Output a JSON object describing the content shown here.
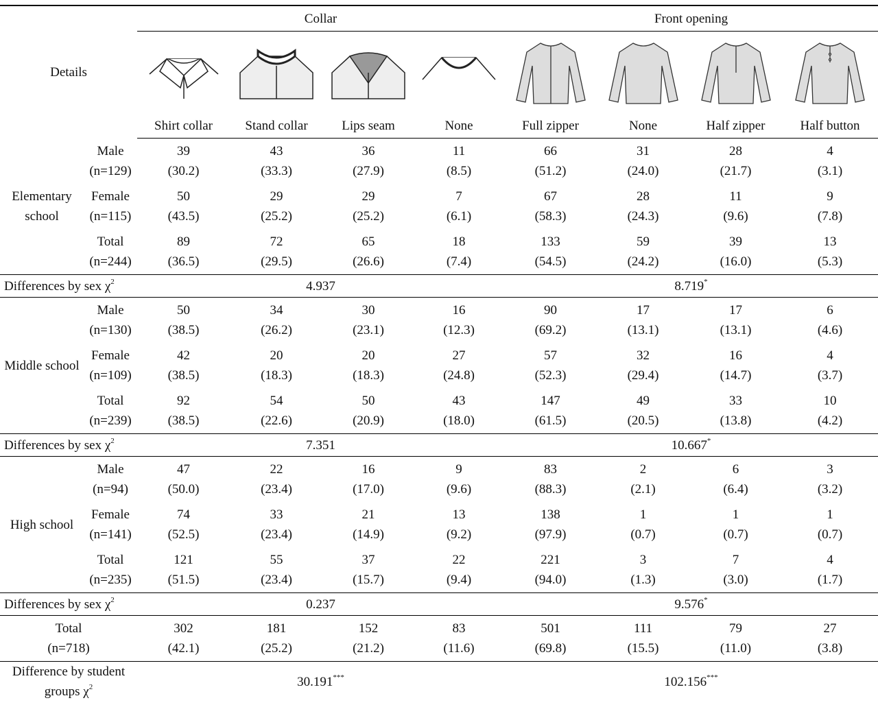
{
  "header": {
    "details": "Details",
    "collar": "Collar",
    "front_opening": "Front opening",
    "columns": [
      "Shirt collar",
      "Stand collar",
      "Lips seam",
      "None",
      "Full zipper",
      "None",
      "Half zipper",
      "Half button"
    ]
  },
  "sections": [
    {
      "school": "Elementary school",
      "rows": [
        {
          "group": "Male",
          "n": "(n=129)",
          "counts": [
            39,
            43,
            36,
            11,
            66,
            31,
            28,
            4
          ],
          "percents": [
            "(30.2)",
            "(33.3)",
            "(27.9)",
            "(8.5)",
            "(51.2)",
            "(24.0)",
            "(21.7)",
            "(3.1)"
          ]
        },
        {
          "group": "Female",
          "n": "(n=115)",
          "counts": [
            50,
            29,
            29,
            7,
            67,
            28,
            11,
            9
          ],
          "percents": [
            "(43.5)",
            "(25.2)",
            "(25.2)",
            "(6.1)",
            "(58.3)",
            "(24.3)",
            "(9.6)",
            "(7.8)"
          ]
        },
        {
          "group": "Total",
          "n": "(n=244)",
          "counts": [
            89,
            72,
            65,
            18,
            133,
            59,
            39,
            13
          ],
          "percents": [
            "(36.5)",
            "(29.5)",
            "(26.6)",
            "(7.4)",
            "(54.5)",
            "(24.2)",
            "(16.0)",
            "(5.3)"
          ]
        }
      ],
      "chi": {
        "label": "Differences by sex χ",
        "exponent": "2",
        "collar": 4.937,
        "front_opening": 8.719,
        "front_opening_sig": "*"
      }
    },
    {
      "school": "Middle school",
      "rows": [
        {
          "group": "Male",
          "n": "(n=130)",
          "counts": [
            50,
            34,
            30,
            16,
            90,
            17,
            17,
            6
          ],
          "percents": [
            "(38.5)",
            "(26.2)",
            "(23.1)",
            "(12.3)",
            "(69.2)",
            "(13.1)",
            "(13.1)",
            "(4.6)"
          ]
        },
        {
          "group": "Female",
          "n": "(n=109)",
          "counts": [
            42,
            20,
            20,
            27,
            57,
            32,
            16,
            4
          ],
          "percents": [
            "(38.5)",
            "(18.3)",
            "(18.3)",
            "(24.8)",
            "(52.3)",
            "(29.4)",
            "(14.7)",
            "(3.7)"
          ]
        },
        {
          "group": "Total",
          "n": "(n=239)",
          "counts": [
            92,
            54,
            50,
            43,
            147,
            49,
            33,
            10
          ],
          "percents": [
            "(38.5)",
            "(22.6)",
            "(20.9)",
            "(18.0)",
            "(61.5)",
            "(20.5)",
            "(13.8)",
            "(4.2)"
          ]
        }
      ],
      "chi": {
        "label": "Differences by sex χ",
        "exponent": "2",
        "collar": 7.351,
        "front_opening": 10.667,
        "front_opening_sig": "*"
      }
    },
    {
      "school": "High school",
      "rows": [
        {
          "group": "Male",
          "n": "(n=94)",
          "counts": [
            47,
            22,
            16,
            9,
            83,
            2,
            6,
            3
          ],
          "percents": [
            "(50.0)",
            "(23.4)",
            "(17.0)",
            "(9.6)",
            "(88.3)",
            "(2.1)",
            "(6.4)",
            "(3.2)"
          ]
        },
        {
          "group": "Female",
          "n": "(n=141)",
          "counts": [
            74,
            33,
            21,
            13,
            138,
            1,
            1,
            1
          ],
          "percents": [
            "(52.5)",
            "(23.4)",
            "(14.9)",
            "(9.2)",
            "(97.9)",
            "(0.7)",
            "(0.7)",
            "(0.7)"
          ]
        },
        {
          "group": "Total",
          "n": "(n=235)",
          "counts": [
            121,
            55,
            37,
            22,
            221,
            3,
            7,
            4
          ],
          "percents": [
            "(51.5)",
            "(23.4)",
            "(15.7)",
            "(9.4)",
            "(94.0)",
            "(1.3)",
            "(3.0)",
            "(1.7)"
          ]
        }
      ],
      "chi": {
        "label": "Differences by sex χ",
        "exponent": "2",
        "collar": 0.237,
        "front_opening": 9.576,
        "front_opening_sig": "*"
      }
    }
  ],
  "total": {
    "label": "Total",
    "n": "(n=718)",
    "counts": [
      302,
      181,
      152,
      83,
      501,
      111,
      79,
      27
    ],
    "percents": [
      "(42.1)",
      "(25.2)",
      "(21.2)",
      "(11.6)",
      "(69.8)",
      "(15.5)",
      "(11.0)",
      "(3.8)"
    ]
  },
  "group_chi": {
    "label": "Difference by student groups χ",
    "exponent": "2",
    "collar": 30.191,
    "collar_sig": "***",
    "front_opening": 102.156,
    "front_opening_sig": "***"
  }
}
